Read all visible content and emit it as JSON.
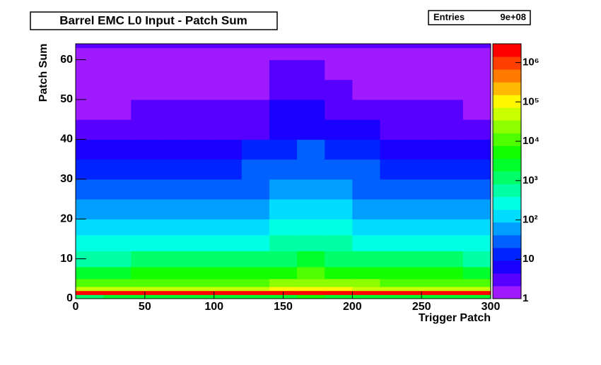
{
  "chart_data": {
    "type": "heatmap",
    "title": "Barrel EMC L0 Input - Patch Sum",
    "stats": [
      {
        "name": "Entries",
        "value": "9e+08"
      }
    ],
    "xlabel": "Trigger Patch",
    "ylabel": "Patch Sum",
    "xlim": [
      0,
      300
    ],
    "ylim": [
      0,
      64
    ],
    "zlim": [
      1,
      3000000
    ],
    "zlog": true,
    "xticks": [
      0,
      50,
      100,
      150,
      200,
      250,
      300
    ],
    "yticks": [
      0,
      10,
      20,
      30,
      40,
      50,
      60
    ],
    "zticks": [
      1,
      10,
      {
        "value": 100,
        "label": "10²"
      },
      {
        "value": 1000,
        "label": "10³"
      },
      {
        "value": 10000,
        "label": "10⁴"
      },
      {
        "value": 100000,
        "label": "10⁵"
      },
      {
        "value": 1000000,
        "label": "10⁶"
      }
    ],
    "x_bins": [
      0,
      20,
      40,
      60,
      80,
      100,
      120,
      140,
      160,
      180,
      200,
      220,
      240,
      260,
      280,
      300
    ],
    "y_bins": [
      0,
      1,
      2,
      3,
      5,
      8,
      12,
      16,
      20,
      25,
      30,
      35,
      40,
      45,
      50,
      55,
      60,
      62,
      63,
      64
    ],
    "z": [
      [
        1400,
        1800,
        2000,
        2000,
        2000,
        2000,
        2200,
        3600,
        4400,
        3200,
        2400,
        2000,
        2000,
        2000,
        1800
      ],
      [
        1500000,
        2000000,
        2000000,
        2000000,
        2000000,
        2000000,
        2000000,
        2500000,
        2500000,
        2200000,
        2000000,
        2000000,
        2000000,
        2000000,
        1800000
      ],
      [
        35000,
        45000,
        50000,
        50000,
        50000,
        50000,
        55000,
        90000,
        110000,
        80000,
        60000,
        50000,
        50000,
        50000,
        45000
      ],
      [
        10000,
        13000,
        15000,
        15000,
        15000,
        15000,
        16000,
        27000,
        33000,
        24000,
        18000,
        15000,
        15000,
        15000,
        13000
      ],
      [
        2800,
        3600,
        4000,
        4000,
        4000,
        4000,
        4400,
        7200,
        8800,
        6400,
        4800,
        4000,
        4000,
        4000,
        3600
      ],
      [
        630,
        810,
        900,
        900,
        900,
        900,
        990,
        1600,
        2000,
        1400,
        1100,
        900,
        900,
        900,
        810
      ],
      [
        210,
        270,
        300,
        300,
        300,
        300,
        330,
        540,
        660,
        480,
        360,
        300,
        300,
        300,
        270
      ],
      [
        100,
        130,
        150,
        150,
        150,
        150,
        160,
        270,
        330,
        240,
        180,
        150,
        150,
        150,
        130
      ],
      [
        50,
        60,
        70,
        70,
        70,
        70,
        80,
        130,
        150,
        110,
        80,
        70,
        70,
        70,
        60
      ],
      [
        25,
        30,
        35,
        35,
        35,
        35,
        40,
        60,
        75,
        55,
        40,
        35,
        35,
        35,
        30
      ],
      [
        13,
        16,
        18,
        18,
        18,
        18,
        20,
        32,
        40,
        29,
        22,
        18,
        18,
        18,
        16
      ],
      [
        6,
        8,
        9,
        9,
        9,
        9,
        10,
        16,
        20,
        14,
        11,
        9,
        9,
        9,
        8
      ],
      [
        3,
        4,
        4,
        4,
        4,
        4,
        4,
        7,
        9,
        6,
        5,
        4,
        4,
        4,
        4
      ],
      [
        2,
        2,
        2.5,
        2.5,
        2.5,
        2.5,
        3,
        4.5,
        5.5,
        4,
        3,
        2.5,
        2.5,
        2.5,
        2
      ],
      [
        1.3,
        1.6,
        1.8,
        1.8,
        1.8,
        1.8,
        2,
        3,
        4,
        3,
        2,
        1.8,
        1.8,
        1.8,
        1.6
      ],
      [
        1.1,
        1.3,
        1.4,
        1.4,
        1.4,
        1.4,
        1.5,
        2.5,
        3,
        2,
        1.6,
        1.4,
        1.4,
        1.4,
        1.3
      ],
      [
        1.1,
        1.2,
        1.2,
        1.2,
        1.2,
        1.2,
        1.2,
        1.5,
        2,
        1.5,
        1.2,
        1.2,
        1.2,
        1.2,
        1.2
      ],
      [
        1.1,
        1.1,
        1.1,
        1.1,
        1.1,
        1.1,
        1.1,
        1.2,
        1.3,
        1.2,
        1.1,
        1.1,
        1.1,
        1.1,
        1.1
      ],
      [
        4,
        4,
        4,
        4,
        4,
        4,
        4,
        4,
        4,
        4,
        4,
        4,
        4,
        4,
        4
      ]
    ]
  }
}
